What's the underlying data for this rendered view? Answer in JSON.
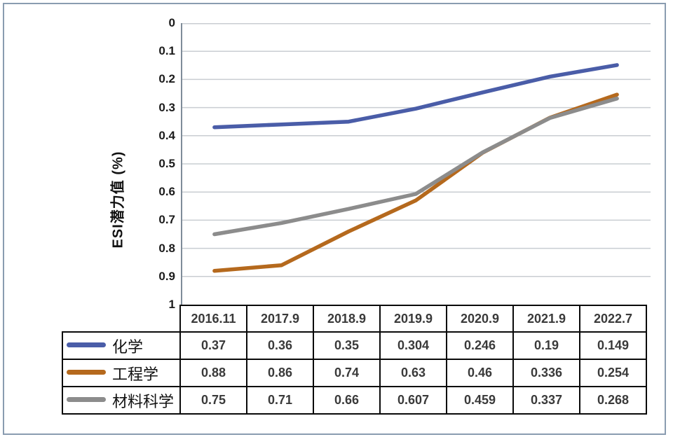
{
  "chart_data": {
    "type": "line",
    "title": "",
    "y_axis_title": "ESI潜力值 (%)",
    "categories": [
      "2016.11",
      "2017.9",
      "2018.9",
      "2019.9",
      "2020.9",
      "2021.9",
      "2022.7"
    ],
    "series": [
      {
        "name": "化学",
        "color": "#4a5da8",
        "values": [
          0.37,
          0.36,
          0.35,
          0.304,
          0.246,
          0.19,
          0.149
        ]
      },
      {
        "name": "工程学",
        "color": "#b5691d",
        "values": [
          0.88,
          0.86,
          0.74,
          0.63,
          0.46,
          0.336,
          0.254
        ]
      },
      {
        "name": "材料科学",
        "color": "#8c8c8c",
        "values": [
          0.75,
          0.71,
          0.66,
          0.607,
          0.459,
          0.337,
          0.268
        ]
      }
    ],
    "y_ticks": [
      0,
      0.1,
      0.2,
      0.3,
      0.4,
      0.5,
      0.6,
      0.7,
      0.8,
      0.9,
      1
    ],
    "ylim": [
      0,
      1
    ],
    "y_inverted": true,
    "grid": true,
    "legend_position": "table-left",
    "colors": {
      "gridline": "#c9cdd2",
      "axis_line": "#7f8c99",
      "table_border": "#0a0a0a",
      "frame_border": "#8a9cb0"
    }
  }
}
